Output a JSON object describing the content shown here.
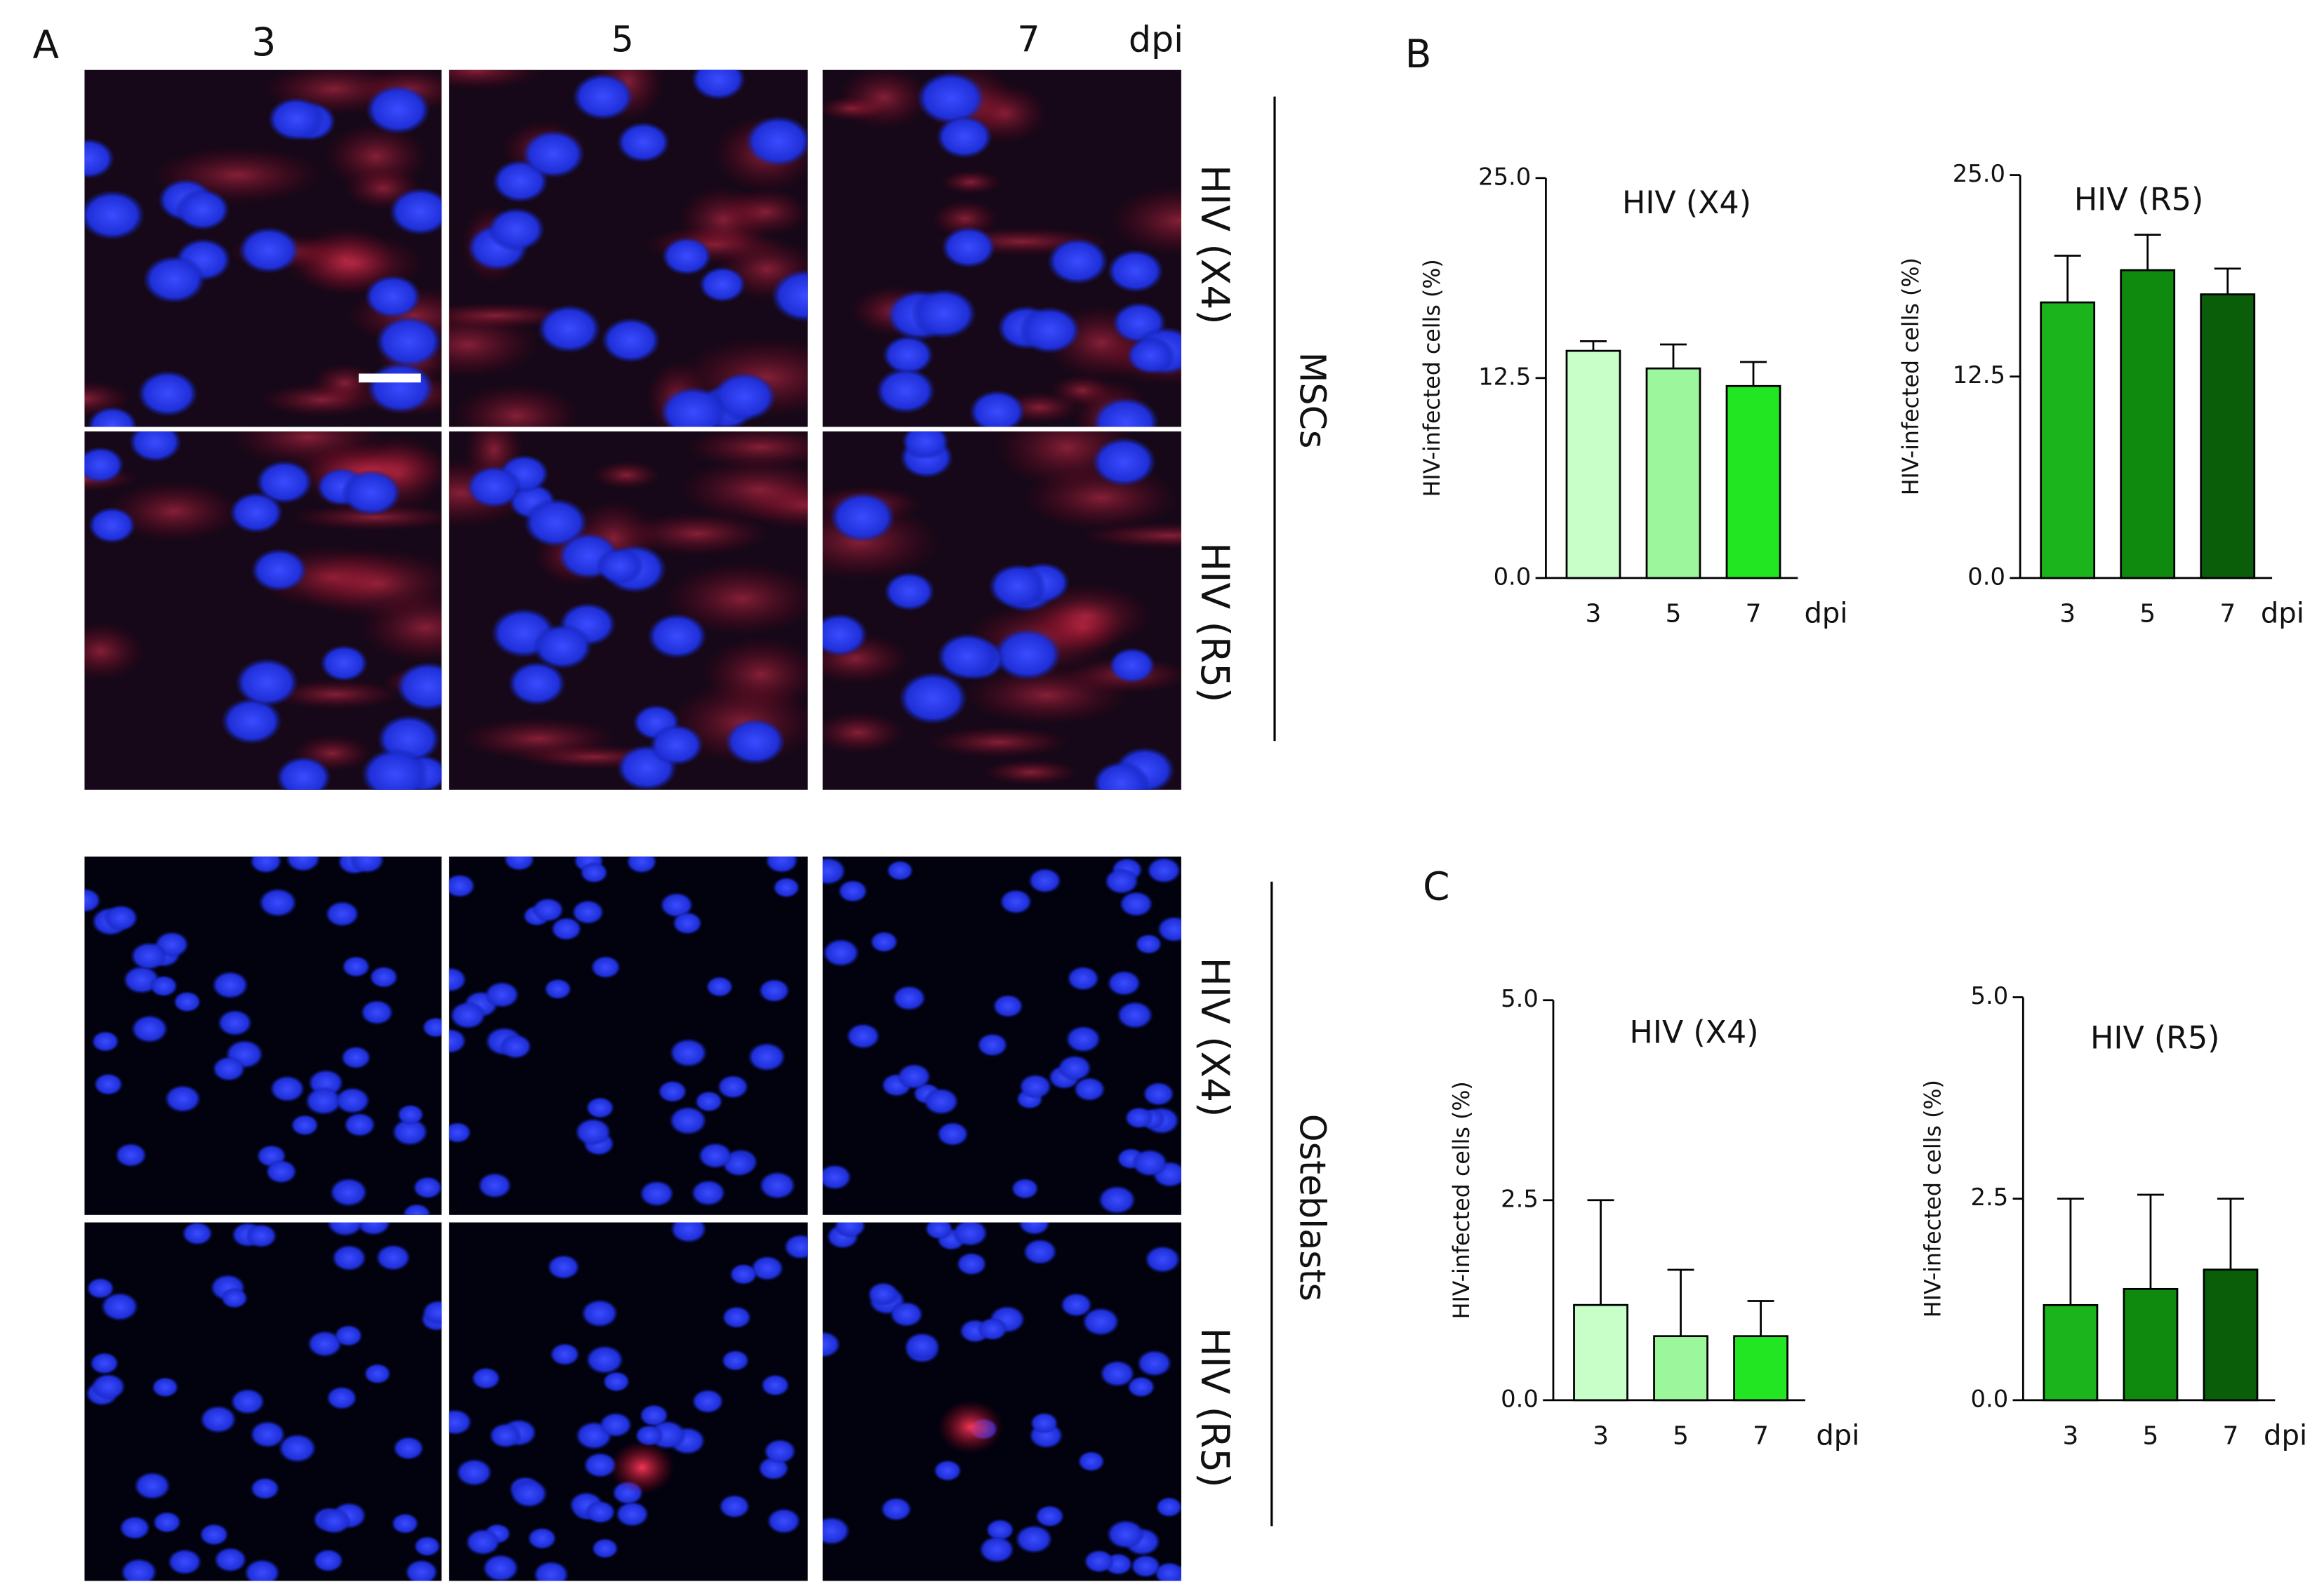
{
  "panel_a": {
    "label": "A",
    "columns": [
      "3",
      "5",
      "7"
    ],
    "column_unit": "dpi",
    "rows": [
      "HIV (X4)",
      "HIV (R5)",
      "HIV (X4)",
      "HIV (R5)"
    ],
    "groups": [
      "MSCs",
      "Osteblasts"
    ]
  },
  "panel_labels": [
    "B",
    "C"
  ],
  "chart_data": [
    {
      "type": "bar",
      "title": "HIV (X4)",
      "ylabel": "HIV-infected cells (%)",
      "xlabel": "dpi",
      "categories": [
        "3",
        "5",
        "7"
      ],
      "values": [
        14.2,
        13.1,
        12.0
      ],
      "errors": [
        0.6,
        1.5,
        1.5
      ],
      "colors": [
        "#c8ffc8",
        "#9cf79c",
        "#22e622"
      ],
      "ylim": [
        0,
        25
      ],
      "yticks": [
        {
          "value": 0,
          "label": "0.0"
        },
        12.5,
        {
          "value": 25,
          "label": "25.0"
        }
      ]
    },
    {
      "type": "bar",
      "title": "HIV (R5)",
      "ylabel": "HIV-infected cells (%)",
      "xlabel": "dpi",
      "categories": [
        "3",
        "5",
        "7"
      ],
      "values": [
        17.1,
        19.1,
        17.6
      ],
      "errors": [
        2.9,
        2.2,
        1.6
      ],
      "colors": [
        "#1cb41c",
        "#0f8a0f",
        "#0a5e0a"
      ],
      "ylim": [
        0,
        25
      ],
      "yticks": [
        {
          "value": 0,
          "label": "0.0"
        },
        12.5,
        {
          "value": 25,
          "label": "25.0"
        }
      ]
    },
    {
      "type": "bar",
      "title": "HIV (X4)",
      "ylabel": "HIV-infected cells (%)",
      "xlabel": "dpi",
      "categories": [
        "3",
        "5",
        "7"
      ],
      "values": [
        1.19,
        0.8,
        0.8
      ],
      "errors": [
        1.31,
        0.83,
        0.44
      ],
      "colors": [
        "#c8ffc8",
        "#9cf79c",
        "#22e622"
      ],
      "ylim": [
        0,
        5
      ],
      "yticks": [
        {
          "value": 0,
          "label": "0.0"
        },
        2.5,
        {
          "value": 5,
          "label": "5.0"
        }
      ]
    },
    {
      "type": "bar",
      "title": "HIV (R5)",
      "ylabel": "HIV-infected cells (%)",
      "xlabel": "dpi",
      "categories": [
        "3",
        "5",
        "7"
      ],
      "values": [
        1.18,
        1.38,
        1.62
      ],
      "errors": [
        1.32,
        1.17,
        0.88
      ],
      "colors": [
        "#1cb41c",
        "#0f8a0f",
        "#0a5e0a"
      ],
      "ylim": [
        0,
        5
      ],
      "yticks": [
        {
          "value": 0,
          "label": "0.0"
        },
        2.5,
        {
          "value": 5,
          "label": "5.0"
        }
      ]
    }
  ]
}
